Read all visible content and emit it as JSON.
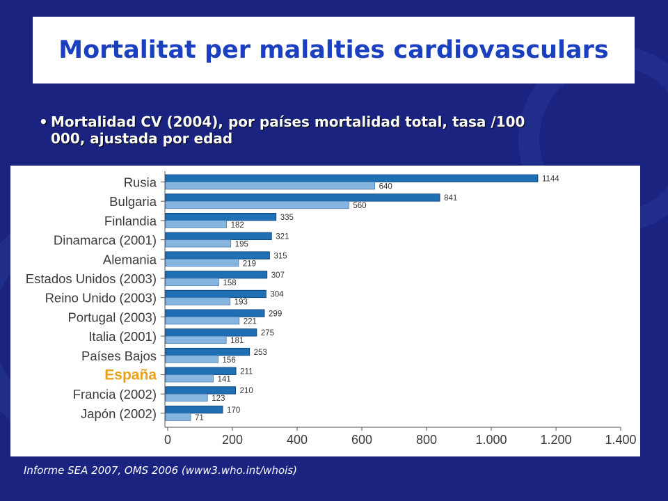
{
  "slide": {
    "title": "Mortalitat per malalties cardiovasculars",
    "bullet": "Mortalidad CV (2004), por países mortalidad total, tasa /100 000, ajustada por edad",
    "source": "Informe SEA 2007, OMS 2006 (www3.who.int/whois)"
  },
  "colors": {
    "background": "#1a2480",
    "title": "#1a3fbf",
    "total_bar": "#1f6fb5",
    "secondary_bar": "#86b5e0",
    "highlight_label": "#e8a21a"
  },
  "chart_data": {
    "type": "bar",
    "orientation": "horizontal",
    "categories": [
      "Rusia",
      "Bulgaria",
      "Finlandia",
      "Dinamarca (2001)",
      "Alemania",
      "Estados Unidos (2003)",
      "Reino Unido (2003)",
      "Portugal (2003)",
      "Italia (2001)",
      "Países Bajos",
      "España",
      "Francia (2002)",
      "Japón (2002)"
    ],
    "highlight_category": "España",
    "series": [
      {
        "values": [
          1144,
          841,
          335,
          321,
          315,
          307,
          304,
          299,
          275,
          253,
          211,
          210,
          170
        ]
      },
      {
        "values": [
          640,
          560,
          182,
          195,
          219,
          158,
          193,
          221,
          181,
          156,
          141,
          123,
          71
        ]
      }
    ],
    "data_labels": {
      "total": [
        "1144",
        "841",
        "335",
        "321",
        "315",
        "307",
        "304",
        "299",
        "275",
        "253",
        "211",
        "210",
        "170"
      ],
      "secondary": [
        "640",
        "560",
        "182",
        "195",
        "219",
        "158",
        "193",
        "221",
        "181",
        "156",
        "141",
        "123",
        "71"
      ]
    },
    "xlim": [
      0,
      1400
    ],
    "x_ticks": [
      0,
      200,
      400,
      600,
      800,
      1000,
      1200,
      1400
    ],
    "x_tick_labels": [
      "0",
      "200",
      "400",
      "600",
      "800",
      "1.000",
      "1.200",
      "1.400"
    ],
    "grid": false
  }
}
